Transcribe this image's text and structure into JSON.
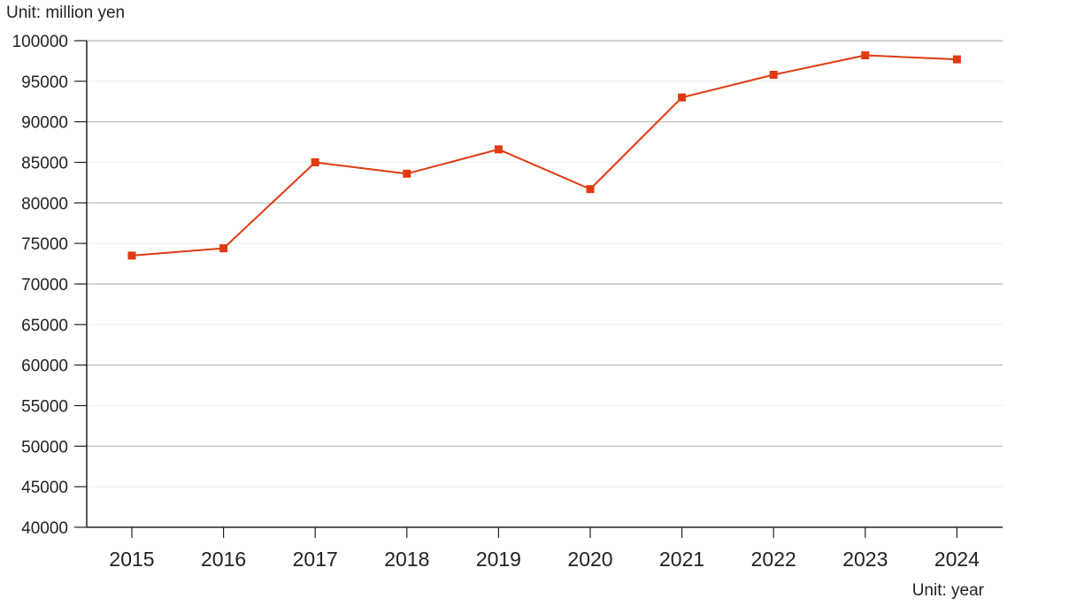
{
  "chart_data": {
    "type": "line",
    "title": "",
    "ylabel": "Unit: million yen",
    "xlabel": "Unit: year",
    "categories": [
      "2015",
      "2016",
      "2017",
      "2018",
      "2019",
      "2020",
      "2021",
      "2022",
      "2023",
      "2024"
    ],
    "series": [
      {
        "values": [
          73500,
          74400,
          85000,
          83600,
          86600,
          81700,
          93000,
          95800,
          98200,
          97700
        ]
      }
    ],
    "ylim": [
      40000,
      100000
    ],
    "yticks": [
      "40000",
      "45000",
      "50000",
      "55000",
      "60000",
      "65000",
      "70000",
      "75000",
      "80000",
      "85000",
      "90000",
      "95000",
      "100000"
    ],
    "grid": true,
    "legend": "none",
    "colors": {
      "line": "#e03a12",
      "major_grid": "#c4c4c4",
      "minor_grid": "#eeeeee",
      "axis": "#222222"
    }
  }
}
